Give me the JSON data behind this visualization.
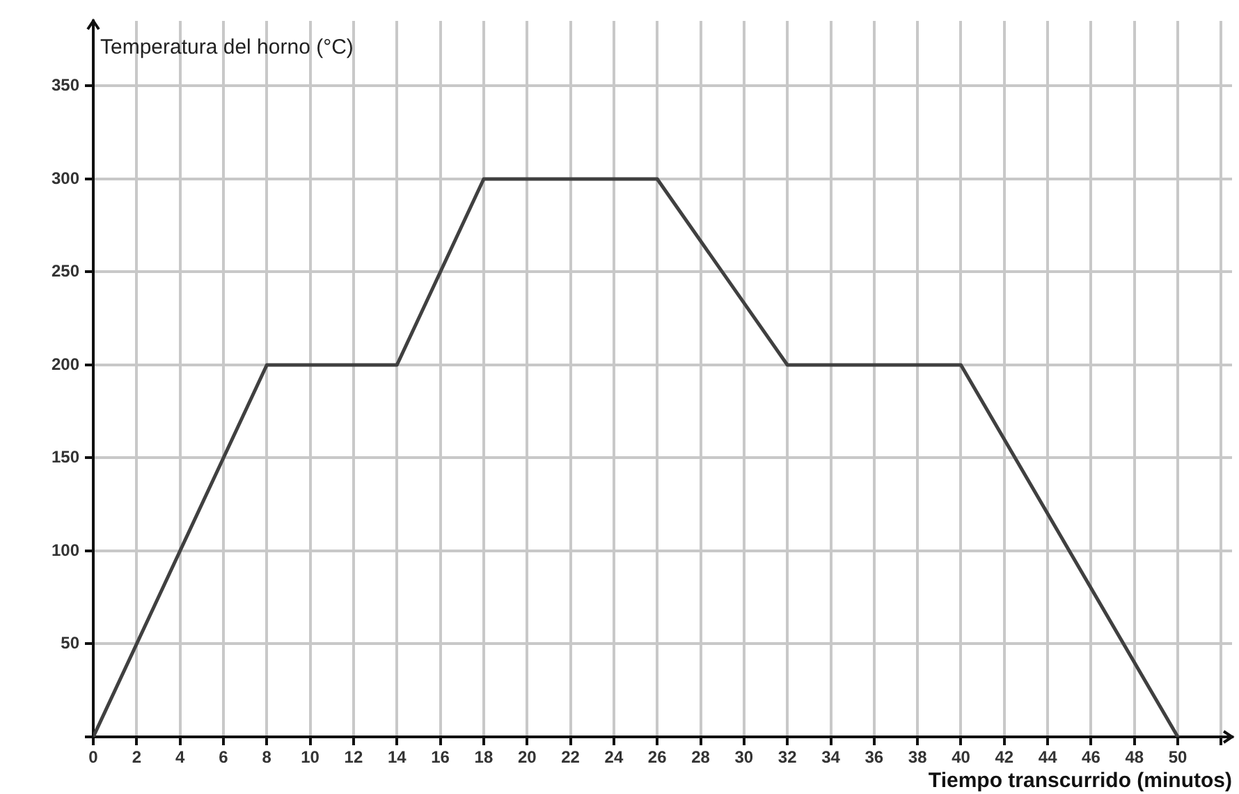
{
  "chart_data": {
    "type": "line",
    "xlabel": "Tiempo transcurrido (minutos)",
    "ylabel": "Temperatura del horno (°C)",
    "x": [
      0,
      8,
      14,
      18,
      26,
      32,
      40,
      50
    ],
    "series": [
      {
        "color": "#404040",
        "values": [
          0,
          200,
          200,
          300,
          300,
          200,
          200,
          0
        ]
      }
    ],
    "xlim": [
      0,
      52.5
    ],
    "xticks": [
      0,
      2,
      4,
      6,
      8,
      10,
      12,
      14,
      16,
      18,
      20,
      22,
      24,
      26,
      28,
      30,
      32,
      34,
      36,
      38,
      40,
      42,
      44,
      46,
      48,
      50,
      {
        "value": 52,
        "label": null
      }
    ],
    "ylim": [
      0,
      385
    ],
    "yticks": [
      {
        "value": 0,
        "label": null
      },
      50,
      100,
      150,
      200,
      250,
      300,
      350
    ],
    "grid": true,
    "legend": false,
    "marker": "none",
    "line_style": "solid"
  }
}
